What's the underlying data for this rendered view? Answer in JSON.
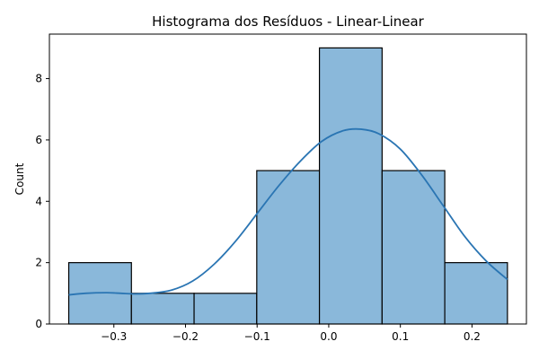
{
  "chart_data": {
    "type": "bar",
    "title": "Histograma dos Resíduos - Linear-Linear",
    "xlabel": "",
    "ylabel": "Count",
    "xlim": [
      -0.39,
      0.276
    ],
    "ylim": [
      0,
      9.45
    ],
    "bins": [
      {
        "x0": -0.363,
        "x1": -0.2755,
        "count": 2
      },
      {
        "x0": -0.2755,
        "x1": -0.188,
        "count": 1
      },
      {
        "x0": -0.188,
        "x1": -0.1005,
        "count": 1
      },
      {
        "x0": -0.1005,
        "x1": -0.013,
        "count": 5
      },
      {
        "x0": -0.013,
        "x1": 0.0745,
        "count": 9
      },
      {
        "x0": 0.0745,
        "x1": 0.162,
        "count": 5
      },
      {
        "x0": 0.162,
        "x1": 0.2495,
        "count": 2
      }
    ],
    "kde": {
      "name": "",
      "x": [
        -0.363,
        -0.34,
        -0.31,
        -0.29,
        -0.27,
        -0.25,
        -0.22,
        -0.19,
        -0.16,
        -0.13,
        -0.1,
        -0.07,
        -0.04,
        -0.01,
        0.02,
        0.045,
        0.07,
        0.1,
        0.13,
        0.16,
        0.19,
        0.22,
        0.2495
      ],
      "y": [
        0.95,
        1.0,
        1.02,
        1.0,
        0.98,
        1.0,
        1.1,
        1.4,
        1.95,
        2.7,
        3.6,
        4.5,
        5.3,
        5.95,
        6.3,
        6.35,
        6.2,
        5.7,
        4.85,
        3.85,
        2.85,
        2.05,
        1.45
      ]
    },
    "xticks": [
      -0.3,
      -0.2,
      -0.1,
      0.0,
      0.1,
      0.2
    ],
    "xtick_labels": [
      "−0.3",
      "−0.2",
      "−0.1",
      "0.0",
      "0.1",
      "0.2"
    ],
    "yticks": [
      0,
      2,
      4,
      6,
      8
    ],
    "ytick_labels": [
      "0",
      "2",
      "4",
      "6",
      "8"
    ],
    "grid": false,
    "legend": "none",
    "colors": {
      "bar_fill": "#8ab8da",
      "bar_edge": "#000000",
      "kde_line": "#2a75b3"
    }
  }
}
